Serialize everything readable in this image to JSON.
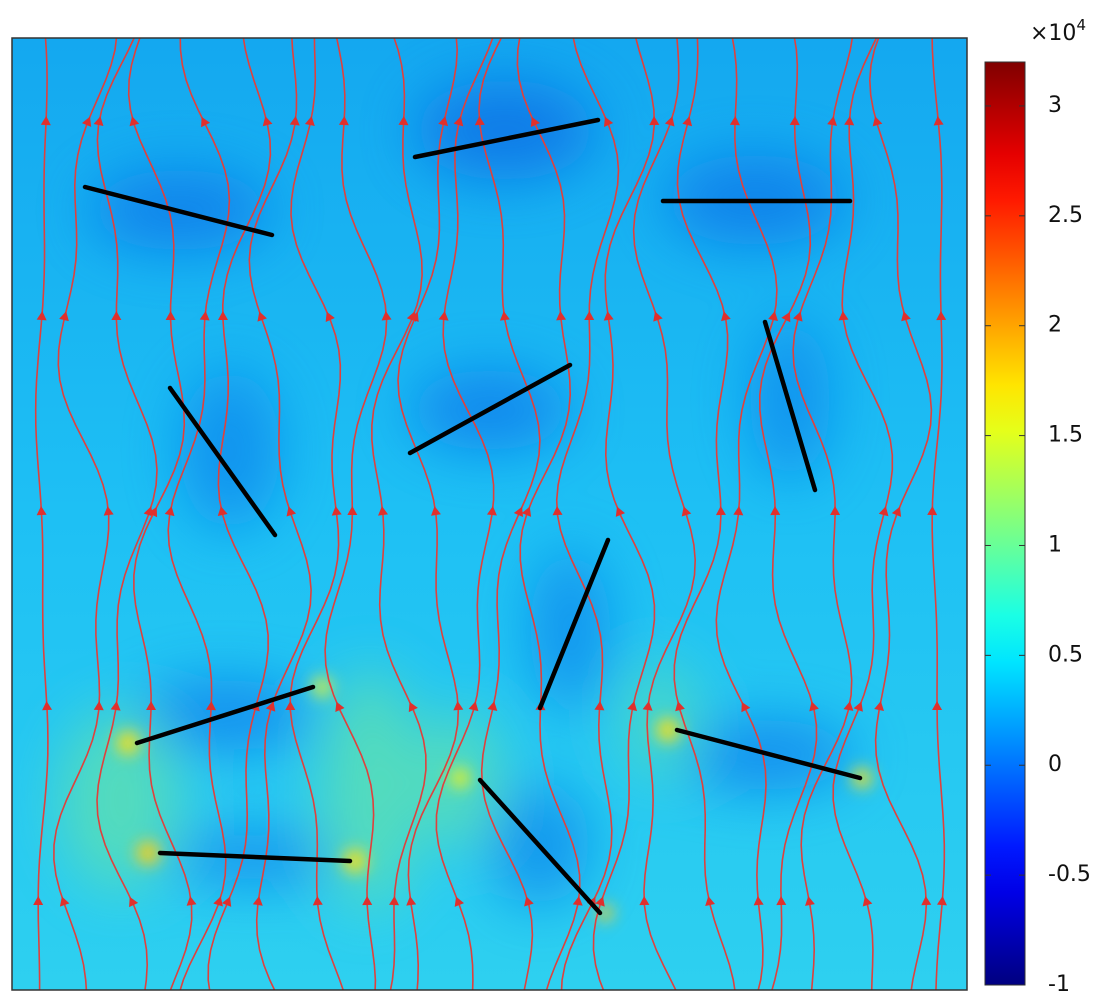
{
  "chart_data": {
    "type": "field",
    "colormap": "jet",
    "colorbar": {
      "lim": [
        -1,
        3.2
      ],
      "ticks": [
        -1,
        -0.5,
        0,
        0.5,
        1,
        1.5,
        2,
        2.5,
        3
      ],
      "scale_base": "×10",
      "scale_exponent": "4"
    }
  }
}
